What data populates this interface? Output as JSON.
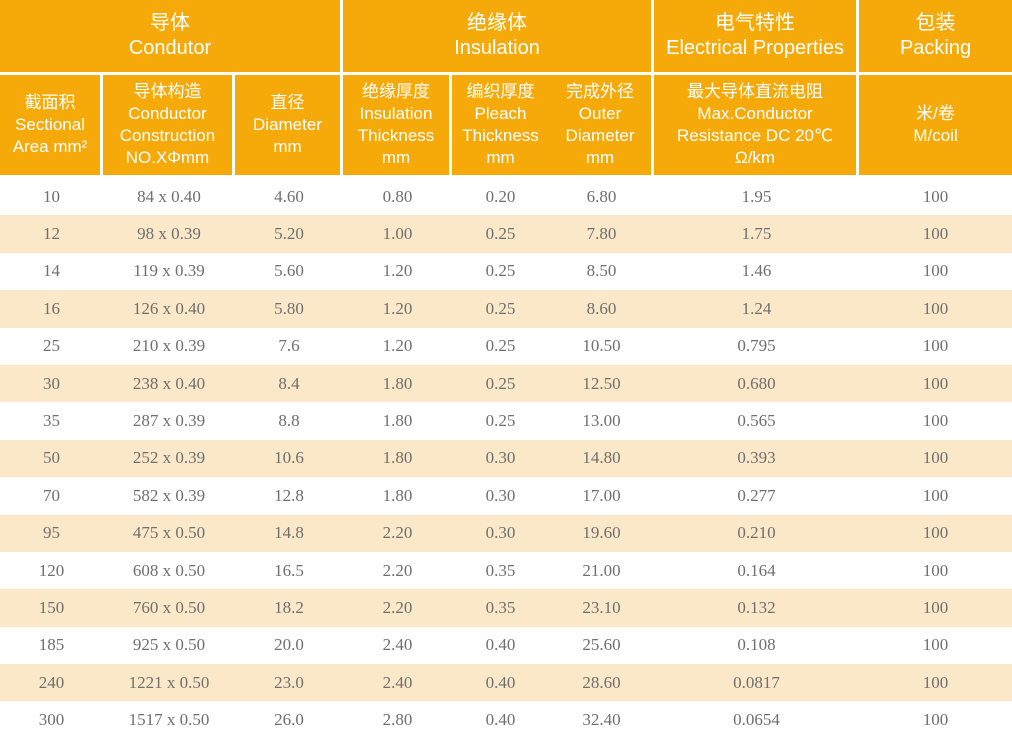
{
  "table": {
    "colors": {
      "header_bg": "#F6AA0A",
      "header_text": "#FFFFFF",
      "row_bg": "#FFFFFF",
      "row_alt_bg": "#FBE8C9",
      "body_text": "#6F6F6F",
      "grid_line": "#FFFFFF"
    },
    "groups": [
      {
        "lines": [
          "导体",
          "Condutor"
        ]
      },
      {
        "lines": [
          "绝缘体",
          "Insulation"
        ]
      },
      {
        "lines": [
          "电气特性",
          "Electrical Properties"
        ]
      },
      {
        "lines": [
          "包装",
          "Packing"
        ]
      }
    ],
    "columns": [
      {
        "lines": [
          "截面积",
          "Sectional",
          "Area mm²"
        ]
      },
      {
        "lines": [
          "导体构造",
          "Conductor",
          "Construction",
          "NO.XΦmm"
        ]
      },
      {
        "lines": [
          "直径",
          "Diameter",
          "mm"
        ]
      },
      {
        "lines": [
          "绝缘厚度",
          "Insulation",
          "Thickness",
          "mm"
        ]
      },
      {
        "lines": [
          "编织厚度",
          "Pleach",
          "Thickness",
          "mm"
        ]
      },
      {
        "lines": [
          "完成外径",
          "Outer",
          "Diameter",
          "mm"
        ]
      },
      {
        "lines": [
          "最大导体直流电阻",
          "Max.Conductor",
          "Resistance DC 20℃",
          "Ω/km"
        ]
      },
      {
        "lines": [
          "米/卷",
          "M/coil"
        ]
      }
    ],
    "column_keys": [
      "sectional-area",
      "conductor-construction",
      "diameter",
      "insulation-thickness",
      "pleach-thickness",
      "outer-diameter",
      "max-conductor-resistance",
      "m-per-coil"
    ],
    "rows": [
      [
        "10",
        "84 x 0.40",
        "4.60",
        "0.80",
        "0.20",
        "6.80",
        "1.95",
        "100"
      ],
      [
        "12",
        "98 x 0.39",
        "5.20",
        "1.00",
        "0.25",
        "7.80",
        "1.75",
        "100"
      ],
      [
        "14",
        "119 x 0.39",
        "5.60",
        "1.20",
        "0.25",
        "8.50",
        "1.46",
        "100"
      ],
      [
        "16",
        "126 x 0.40",
        "5.80",
        "1.20",
        "0.25",
        "8.60",
        "1.24",
        "100"
      ],
      [
        "25",
        "210 x 0.39",
        "7.6",
        "1.20",
        "0.25",
        "10.50",
        "0.795",
        "100"
      ],
      [
        "30",
        "238 x 0.40",
        "8.4",
        "1.80",
        "0.25",
        "12.50",
        "0.680",
        "100"
      ],
      [
        "35",
        "287 x 0.39",
        "8.8",
        "1.80",
        "0.25",
        "13.00",
        "0.565",
        "100"
      ],
      [
        "50",
        "252 x 0.39",
        "10.6",
        "1.80",
        "0.30",
        "14.80",
        "0.393",
        "100"
      ],
      [
        "70",
        "582 x 0.39",
        "12.8",
        "1.80",
        "0.30",
        "17.00",
        "0.277",
        "100"
      ],
      [
        "95",
        "475 x 0.50",
        "14.8",
        "2.20",
        "0.30",
        "19.60",
        "0.210",
        "100"
      ],
      [
        "120",
        "608 x 0.50",
        "16.5",
        "2.20",
        "0.35",
        "21.00",
        "0.164",
        "100"
      ],
      [
        "150",
        "760 x 0.50",
        "18.2",
        "2.20",
        "0.35",
        "23.10",
        "0.132",
        "100"
      ],
      [
        "185",
        "925 x 0.50",
        "20.0",
        "2.40",
        "0.40",
        "25.60",
        "0.108",
        "100"
      ],
      [
        "240",
        "1221 x 0.50",
        "23.0",
        "2.40",
        "0.40",
        "28.60",
        "0.0817",
        "100"
      ],
      [
        "300",
        "1517 x 0.50",
        "26.0",
        "2.80",
        "0.40",
        "32.40",
        "0.0654",
        "100"
      ]
    ]
  }
}
